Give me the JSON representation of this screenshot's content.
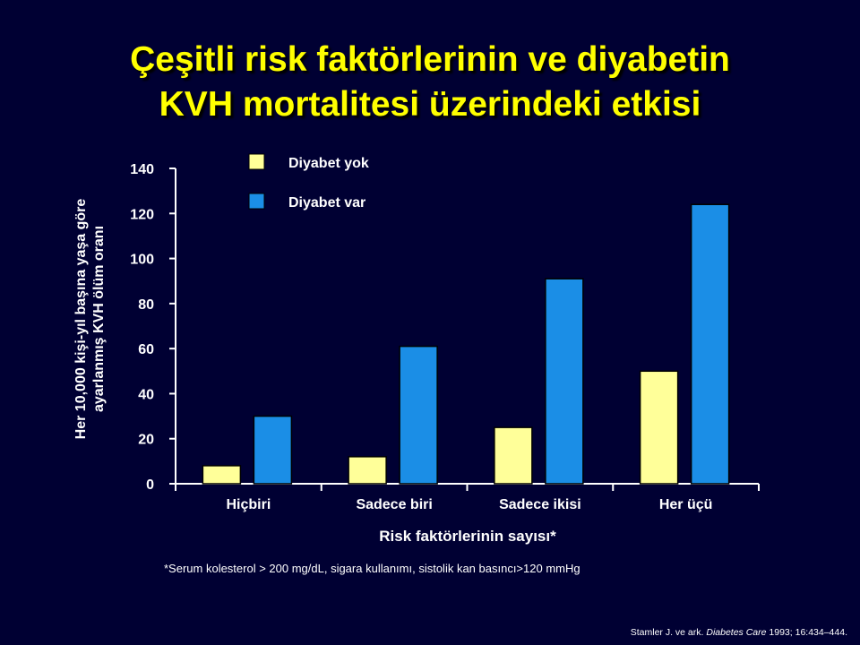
{
  "title": {
    "line1": "Çeşitli risk faktörlerinin ve diyabetin",
    "line2": "KVH mortalitesi üzerindeki etkisi"
  },
  "footnote": "*Serum kolesterol > 200 mg/dL, sigara kullanımı, sistolik kan basıncı>120 mmHg",
  "source": {
    "authors": "Stamler J. ve ark.",
    "journal": "Diabetes Care",
    "details": "1993; 16:434–444."
  },
  "chart_data": {
    "type": "bar",
    "xlabel": "Risk faktörlerinin sayısı*",
    "ylabel_line1": "Her 10,000 kişi-yıl başına yaşa göre",
    "ylabel_line2": "ayarlanmış KVH ölüm oranı",
    "categories": [
      "Hiçbiri",
      "Sadece biri",
      "Sadece ikisi",
      "Her üçü"
    ],
    "series": [
      {
        "name": "Diyabet yok",
        "color": "#ffff99",
        "values": [
          8,
          12,
          25,
          50
        ]
      },
      {
        "name": "Diyabet var",
        "color": "#1b8ee6",
        "values": [
          30,
          61,
          91,
          124
        ]
      }
    ],
    "ylim": [
      0,
      140
    ],
    "yticks": [
      0,
      20,
      40,
      60,
      80,
      100,
      120,
      140
    ],
    "grid": false,
    "legend_position": "top-left"
  }
}
